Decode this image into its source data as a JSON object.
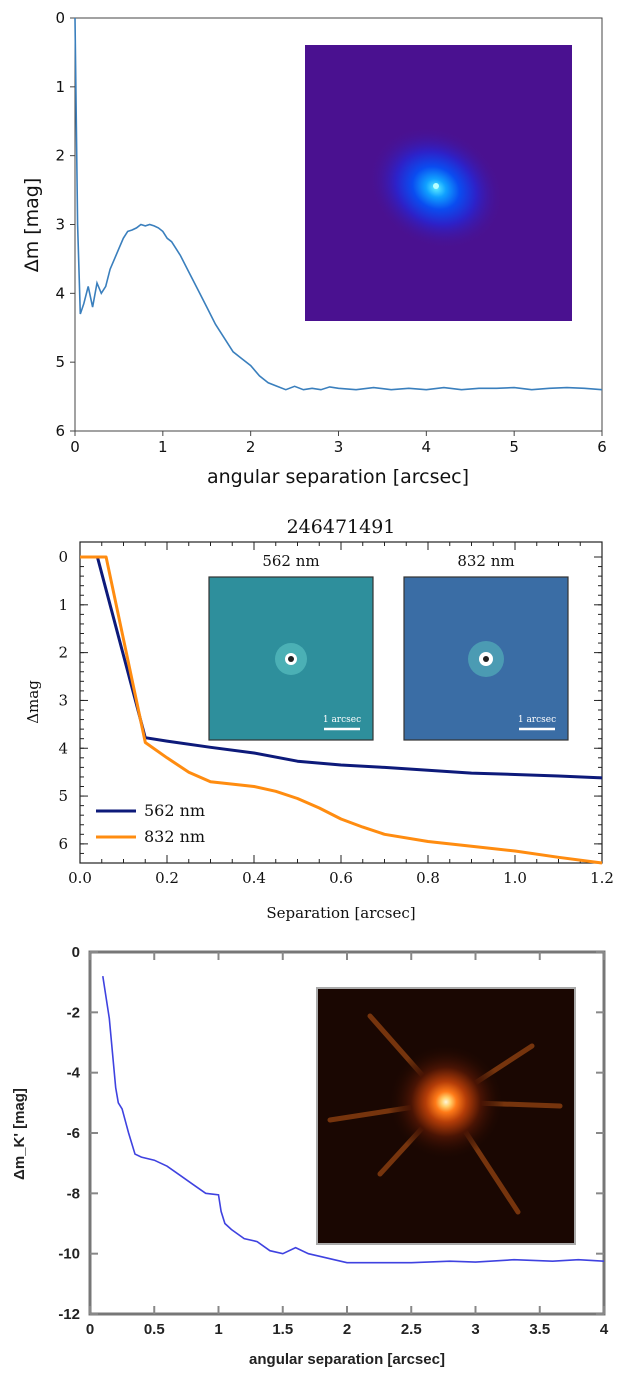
{
  "chart_data": [
    {
      "type": "line",
      "xlabel": "angular separation [arcsec]",
      "ylabel": "Δm [mag]",
      "xlim": [
        0,
        6
      ],
      "ylim": [
        0,
        6
      ],
      "y_inverted": true,
      "x_ticks": [
        "0",
        "1",
        "2",
        "3",
        "4",
        "5",
        "6"
      ],
      "y_ticks": [
        "0",
        "1",
        "2",
        "3",
        "4",
        "5",
        "6"
      ],
      "grid": false,
      "inset": "speckle image (blue-violet colormap)",
      "series": [
        {
          "color": "#3a7fbd",
          "x": [
            0.0,
            0.03,
            0.06,
            0.1,
            0.15,
            0.2,
            0.25,
            0.3,
            0.35,
            0.4,
            0.45,
            0.5,
            0.55,
            0.6,
            0.65,
            0.7,
            0.75,
            0.8,
            0.85,
            0.9,
            0.95,
            1.0,
            1.05,
            1.1,
            1.15,
            1.2,
            1.3,
            1.4,
            1.5,
            1.6,
            1.7,
            1.8,
            1.9,
            2.0,
            2.1,
            2.2,
            2.3,
            2.4,
            2.5,
            2.6,
            2.7,
            2.8,
            2.9,
            3.0,
            3.2,
            3.4,
            3.6,
            3.8,
            4.0,
            4.2,
            4.4,
            4.6,
            4.8,
            5.0,
            5.2,
            5.4,
            5.6,
            5.8,
            6.0
          ],
          "y": [
            0.0,
            3.0,
            4.3,
            4.15,
            3.9,
            4.2,
            3.85,
            4.0,
            3.9,
            3.65,
            3.5,
            3.35,
            3.2,
            3.1,
            3.08,
            3.05,
            3.0,
            3.02,
            3.0,
            3.02,
            3.05,
            3.1,
            3.2,
            3.25,
            3.35,
            3.45,
            3.7,
            3.95,
            4.2,
            4.45,
            4.65,
            4.85,
            4.95,
            5.05,
            5.2,
            5.3,
            5.35,
            5.4,
            5.35,
            5.4,
            5.38,
            5.4,
            5.36,
            5.38,
            5.4,
            5.37,
            5.4,
            5.38,
            5.4,
            5.37,
            5.4,
            5.38,
            5.38,
            5.37,
            5.4,
            5.38,
            5.37,
            5.38,
            5.4
          ]
        }
      ]
    },
    {
      "type": "line",
      "title": "246471491",
      "xlabel": "Separation [arcsec]",
      "ylabel": "Δmag",
      "xlim": [
        0,
        1.2
      ],
      "ylim": [
        0,
        6.4
      ],
      "y_inverted": true,
      "x_ticks": [
        "0.0",
        "0.2",
        "0.4",
        "0.6",
        "0.8",
        "1.0",
        "1.2"
      ],
      "y_ticks": [
        "0",
        "1",
        "2",
        "3",
        "4",
        "5",
        "6"
      ],
      "legend": "lower-left",
      "grid": false,
      "insets": [
        {
          "title": "562 nm",
          "scale_label": "1 arcsec"
        },
        {
          "title": "832 nm",
          "scale_label": "1 arcsec"
        }
      ],
      "series": [
        {
          "name": "562 nm",
          "color": "#0d1a7a",
          "x": [
            0.0,
            0.04,
            0.15,
            0.2,
            0.3,
            0.4,
            0.5,
            0.6,
            0.7,
            0.8,
            0.9,
            1.0,
            1.1,
            1.2
          ],
          "y": [
            0.0,
            0.0,
            3.78,
            3.85,
            3.98,
            4.1,
            4.27,
            4.35,
            4.4,
            4.46,
            4.52,
            4.55,
            4.58,
            4.62
          ]
        },
        {
          "name": "832 nm",
          "color": "#ff8c10",
          "x": [
            0.0,
            0.06,
            0.15,
            0.2,
            0.25,
            0.3,
            0.35,
            0.4,
            0.45,
            0.5,
            0.55,
            0.6,
            0.65,
            0.7,
            0.8,
            0.9,
            1.0,
            1.1,
            1.2
          ],
          "y": [
            0.0,
            0.0,
            3.88,
            4.2,
            4.5,
            4.7,
            4.75,
            4.8,
            4.9,
            5.05,
            5.25,
            5.48,
            5.65,
            5.8,
            5.95,
            6.05,
            6.15,
            6.28,
            6.4
          ]
        }
      ]
    },
    {
      "type": "line",
      "xlabel": "angular separation [arcsec]",
      "ylabel": "Δm_K' [mag]",
      "xlim": [
        0,
        4
      ],
      "ylim": [
        -12,
        0
      ],
      "x_ticks": [
        "0",
        "0.5",
        "1",
        "1.5",
        "2",
        "2.5",
        "3",
        "3.5",
        "4"
      ],
      "y_ticks": [
        "0",
        "-2",
        "-4",
        "-6",
        "-8",
        "-10",
        "-12"
      ],
      "grid": false,
      "inset": "adaptive-optics image (hot colormap)",
      "series": [
        {
          "color": "#3f42e0",
          "x": [
            0.1,
            0.15,
            0.2,
            0.22,
            0.25,
            0.3,
            0.35,
            0.4,
            0.5,
            0.6,
            0.7,
            0.8,
            0.9,
            1.0,
            1.02,
            1.05,
            1.1,
            1.2,
            1.3,
            1.4,
            1.5,
            1.6,
            1.7,
            1.8,
            1.9,
            2.0,
            2.2,
            2.5,
            2.8,
            3.0,
            3.3,
            3.6,
            3.8,
            4.0
          ],
          "y": [
            -0.8,
            -2.2,
            -4.5,
            -5.0,
            -5.2,
            -6.0,
            -6.7,
            -6.8,
            -6.9,
            -7.1,
            -7.4,
            -7.7,
            -8.0,
            -8.05,
            -8.6,
            -9.0,
            -9.2,
            -9.5,
            -9.6,
            -9.9,
            -10.0,
            -9.8,
            -10.0,
            -10.1,
            -10.2,
            -10.3,
            -10.3,
            -10.3,
            -10.25,
            -10.28,
            -10.2,
            -10.25,
            -10.2,
            -10.25
          ]
        }
      ]
    }
  ]
}
